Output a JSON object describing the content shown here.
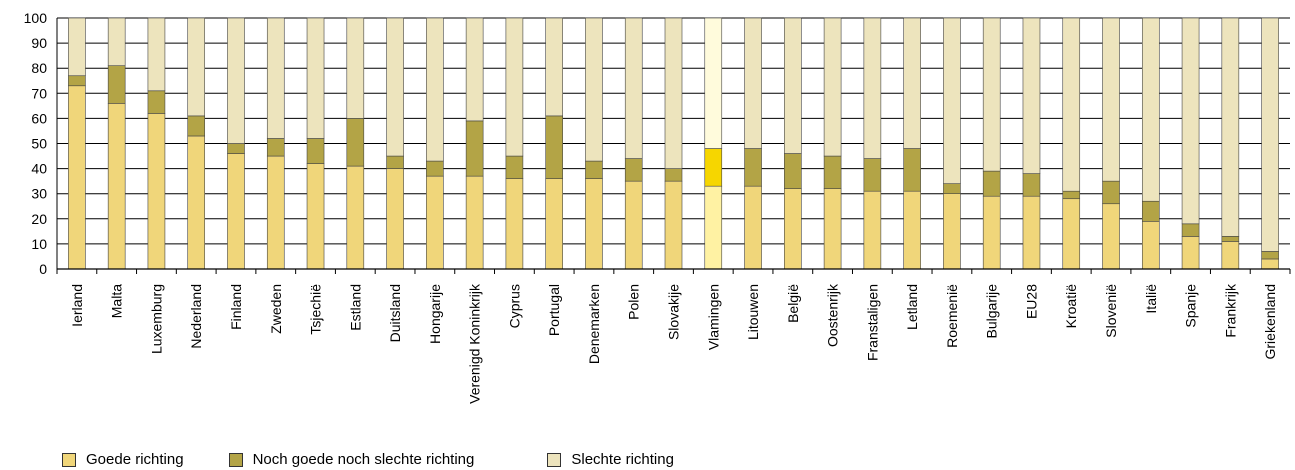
{
  "chart_data": {
    "type": "bar",
    "stacked": true,
    "title": "",
    "xlabel": "",
    "ylabel": "",
    "ylim": [
      0,
      100
    ],
    "yticks": [
      0,
      10,
      20,
      30,
      40,
      50,
      60,
      70,
      80,
      90,
      100
    ],
    "grid": "horizontal",
    "legend_position": "bottom-left",
    "categories": [
      "Ierland",
      "Malta",
      "Luxemburg",
      "Nederland",
      "Finland",
      "Zweden",
      "Tsjechië",
      "Estland",
      "Duitsland",
      "Hongarije",
      "Verenigd Koninkrijk",
      "Cyprus",
      "Portugal",
      "Denemarken",
      "Polen",
      "Slovakije",
      "Vlamingen",
      "Litouwen",
      "België",
      "Oostenrijk",
      "Franstaligen",
      "Letland",
      "Roemenië",
      "Bulgarije",
      "EU28",
      "Kroatië",
      "Slovenië",
      "Italië",
      "Spanje",
      "Frankrijk",
      "Griekenland"
    ],
    "series": [
      {
        "name": "Goede richting",
        "color": "#f0d67a",
        "values": [
          73,
          66,
          62,
          53,
          46,
          45,
          42,
          41,
          40,
          37,
          37,
          36,
          36,
          36,
          35,
          35,
          33,
          33,
          32,
          32,
          31,
          31,
          30,
          29,
          29,
          28,
          26,
          19,
          13,
          11,
          4
        ]
      },
      {
        "name": "Noch goede noch slechte richting",
        "color": "#b3a446",
        "values": [
          4,
          15,
          9,
          8,
          4,
          7,
          10,
          19,
          5,
          6,
          22,
          9,
          25,
          7,
          9,
          5,
          15,
          15,
          14,
          13,
          13,
          17,
          4,
          10,
          9,
          3,
          9,
          8,
          5,
          2,
          3
        ]
      },
      {
        "name": "Slechte richting",
        "color": "#ede4bd",
        "values": [
          23,
          19,
          29,
          39,
          50,
          48,
          48,
          40,
          55,
          57,
          41,
          55,
          39,
          57,
          56,
          60,
          52,
          52,
          54,
          55,
          56,
          52,
          66,
          61,
          62,
          69,
          65,
          73,
          82,
          87,
          93
        ]
      }
    ],
    "highlight": {
      "category": "Vlamingen",
      "colors": [
        "#fff2a3",
        "#f6d600",
        "#fffbdc"
      ]
    }
  }
}
